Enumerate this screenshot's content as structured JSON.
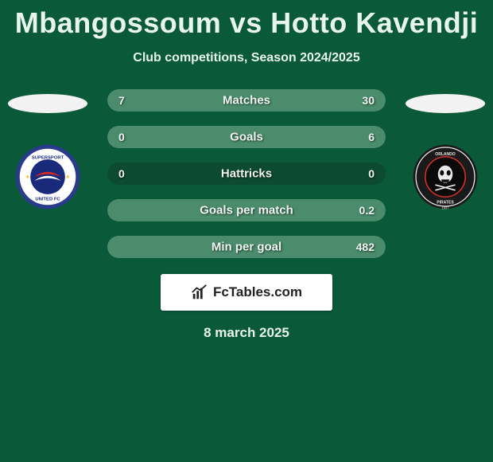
{
  "title": "Mbangossoum vs Hotto Kavendji",
  "subtitle": "Club competitions, Season 2024/2025",
  "date": "8 march 2025",
  "brand_text": "FcTables.com",
  "colors": {
    "bar_bg": "#0d4a32",
    "bar_fill": "#4a8c6c"
  },
  "left_club": {
    "name": "SuperSport United FC",
    "outer_ring": "#2a3a8c",
    "inner_bg": "#ffffff",
    "accent": "#d62828",
    "text_color": "#1a2a7a"
  },
  "right_club": {
    "name": "Orlando Pirates",
    "outer_ring": "#1a1a1a",
    "inner_bg": "#0a0a0a",
    "accent": "#c9302c",
    "text_color": "#e8e8e8",
    "year": "1937"
  },
  "stats": [
    {
      "label": "Matches",
      "left_val": "7",
      "right_val": "30",
      "left_pct": 12,
      "right_pct": 88
    },
    {
      "label": "Goals",
      "left_val": "0",
      "right_val": "6",
      "left_pct": 3,
      "right_pct": 97
    },
    {
      "label": "Hattricks",
      "left_val": "0",
      "right_val": "0",
      "left_pct": 0,
      "right_pct": 0
    },
    {
      "label": "Goals per match",
      "left_val": "",
      "right_val": "0.2",
      "left_pct": 0,
      "right_pct": 100
    },
    {
      "label": "Min per goal",
      "left_val": "",
      "right_val": "482",
      "left_pct": 0,
      "right_pct": 100
    }
  ]
}
